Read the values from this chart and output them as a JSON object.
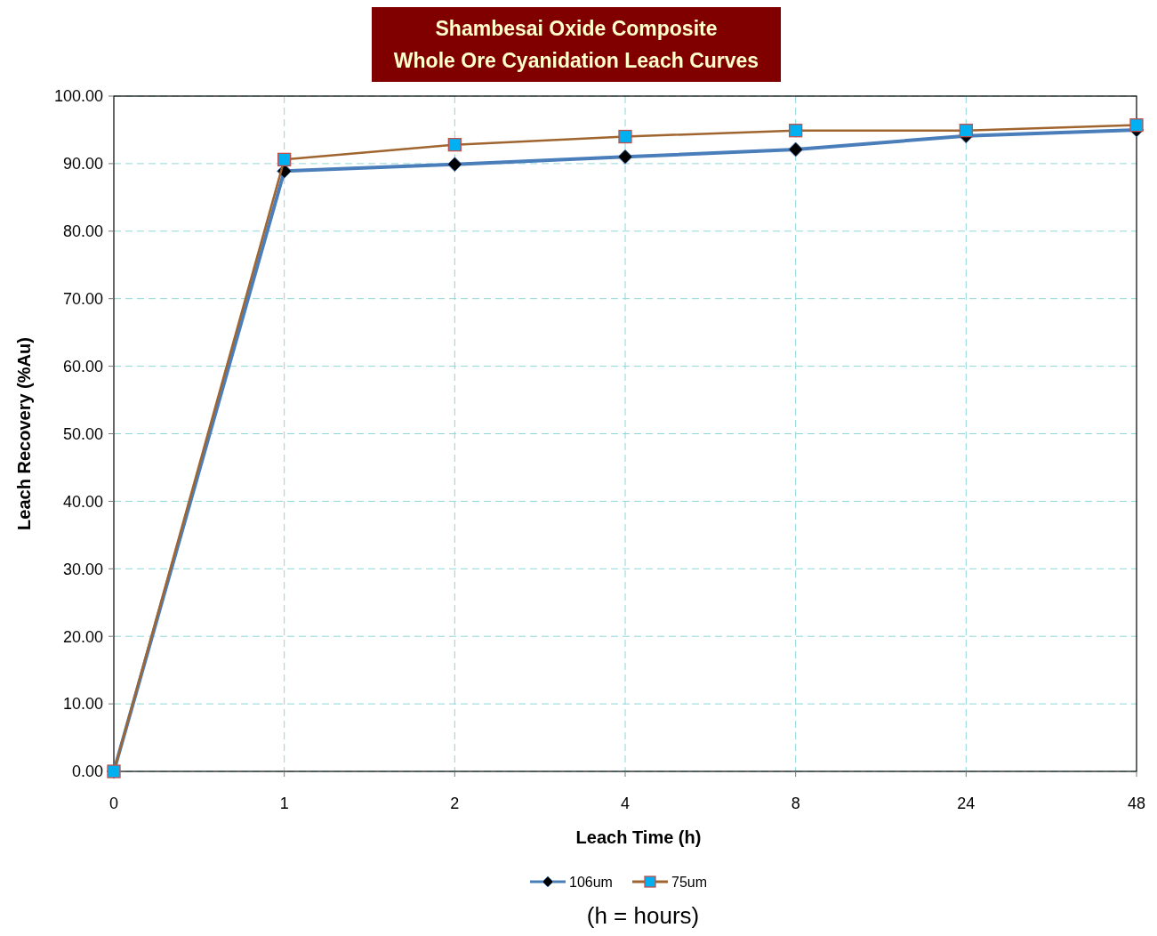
{
  "chart_data": {
    "type": "line",
    "title": "Shambesai Oxide Composite\nWhole Ore Cyanidation Leach Curves",
    "xlabel": "Leach Time (h)",
    "ylabel": "Leach Recovery (%Au)",
    "categories": [
      "0",
      "1",
      "2",
      "4",
      "8",
      "24",
      "48"
    ],
    "series": [
      {
        "name": "106um",
        "color": "#4a7ebb",
        "marker": "diamond",
        "values": [
          0,
          88.9,
          89.9,
          91.0,
          92.1,
          94.1,
          95.0
        ]
      },
      {
        "name": "75um",
        "color": "#a0652f",
        "marker": "square",
        "values": [
          0,
          90.6,
          92.8,
          94.0,
          94.9,
          94.9,
          95.7
        ]
      }
    ],
    "ylim": [
      0,
      100
    ],
    "yticks": [
      {
        "value": 0,
        "label": "0.00"
      },
      {
        "value": 10,
        "label": "10.00"
      },
      {
        "value": 20,
        "label": "20.00"
      },
      {
        "value": 30,
        "label": "30.00"
      },
      {
        "value": 40,
        "label": "40.00"
      },
      {
        "value": 50,
        "label": "50.00"
      },
      {
        "value": 60,
        "label": "60.00"
      },
      {
        "value": 70,
        "label": "70.00"
      },
      {
        "value": 80,
        "label": "80.00"
      },
      {
        "value": 90,
        "label": "90.00"
      },
      {
        "value": 100,
        "label": "100.00"
      }
    ],
    "grid": true,
    "legend": "bottom",
    "annotations": [
      "(h = hours)"
    ]
  }
}
